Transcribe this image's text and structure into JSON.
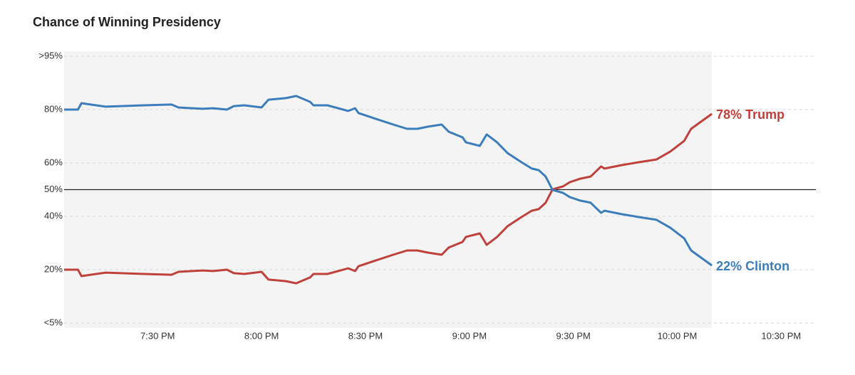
{
  "chart_data": {
    "type": "line",
    "title": "Chance of Winning Presidency",
    "x": [
      1143,
      1147,
      1148,
      1155,
      1166,
      1174,
      1176,
      1183,
      1186,
      1190,
      1192,
      1195,
      1200,
      1202,
      1207,
      1210,
      1214,
      1215,
      1219,
      1225,
      1227,
      1228,
      1233,
      1238,
      1242,
      1245,
      1248,
      1252,
      1254,
      1258,
      1259,
      1263,
      1265,
      1268,
      1271,
      1275,
      1278,
      1280,
      1282,
      1284,
      1287,
      1289,
      1292,
      1295,
      1298,
      1299,
      1304,
      1309,
      1314,
      1318,
      1322,
      1324,
      1330
    ],
    "series": [
      {
        "name": "78% Trump",
        "color": "#c0413c",
        "values": [
          20,
          20,
          17.6,
          18.9,
          18.4,
          18.1,
          19.2,
          19.7,
          19.5,
          20,
          18.7,
          18.4,
          19.2,
          16.3,
          15.7,
          14.9,
          17.1,
          18.4,
          18.4,
          20.5,
          19.5,
          21.3,
          23.5,
          25.6,
          27.2,
          27.2,
          26.4,
          25.6,
          28.3,
          30.4,
          32.3,
          33.6,
          29.3,
          32.3,
          36.3,
          39.7,
          42.1,
          42.7,
          45.1,
          50.1,
          51.2,
          52.8,
          54.1,
          54.9,
          58.7,
          57.9,
          59.2,
          60.3,
          61.3,
          64.3,
          68.3,
          72.8,
          78.4
        ]
      },
      {
        "name": "22% Clinton",
        "color": "#3c7dbb",
        "values": [
          80,
          80,
          82.4,
          81.1,
          81.6,
          81.9,
          80.8,
          80.3,
          80.5,
          80,
          81.3,
          81.6,
          80.8,
          83.7,
          84.3,
          85.1,
          82.9,
          81.6,
          81.6,
          79.5,
          80.5,
          78.7,
          76.5,
          74.4,
          72.8,
          72.8,
          73.6,
          74.4,
          71.7,
          69.6,
          67.7,
          66.4,
          70.7,
          67.7,
          63.7,
          60.3,
          57.9,
          57.3,
          54.9,
          49.9,
          48.8,
          47.2,
          45.9,
          45.1,
          41.3,
          42.1,
          40.8,
          39.7,
          38.7,
          35.7,
          31.7,
          27.2,
          21.6
        ]
      }
    ],
    "xlim": [
      1143,
      1360
    ],
    "xticks": [
      {
        "value": 1170,
        "label": "7:30 PM"
      },
      {
        "value": 1200,
        "label": "8:00 PM"
      },
      {
        "value": 1230,
        "label": "8:30 PM"
      },
      {
        "value": 1260,
        "label": "9:00 PM"
      },
      {
        "value": 1290,
        "label": "9:30 PM"
      },
      {
        "value": 1320,
        "label": "10:00 PM"
      },
      {
        "value": 1350,
        "label": "10:30 PM"
      }
    ],
    "ylim": [
      0,
      100
    ],
    "yticks": [
      {
        "value": 0,
        "label": "<5%"
      },
      {
        "value": 20,
        "label": "20%"
      },
      {
        "value": 40,
        "label": "40%"
      },
      {
        "value": 50,
        "label": "50%"
      },
      {
        "value": 60,
        "label": "60%"
      },
      {
        "value": 80,
        "label": "80%"
      },
      {
        "value": 100,
        "label": ">95%"
      }
    ],
    "reference_line": 50,
    "grid": true
  }
}
